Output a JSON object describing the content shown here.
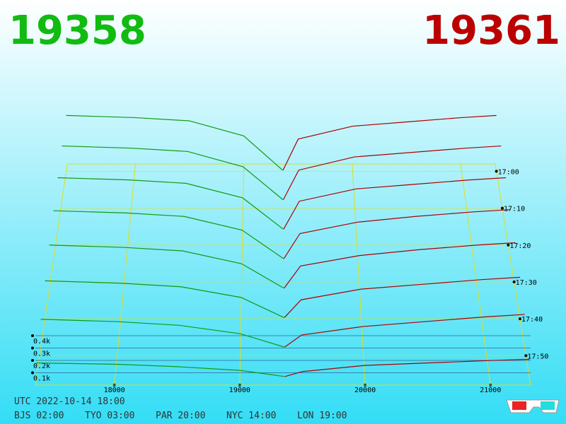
{
  "chart_data": {
    "type": "depth3d",
    "bid_price": 19358,
    "ask_price": 19361,
    "bid_color": "#119911",
    "ask_color": "#aa0000",
    "xlim": [
      17370,
      21320
    ],
    "xticks": [
      18000,
      19000,
      20000,
      21000
    ],
    "ylim": [
      0,
      400
    ],
    "yticks": [
      {
        "value": 100,
        "label": "0.1k"
      },
      {
        "value": 200,
        "label": "0.2k"
      },
      {
        "value": 300,
        "label": "0.3k"
      },
      {
        "value": 400,
        "label": "0.4k"
      }
    ],
    "zlim": [
      -2,
      58
    ],
    "zticks": [
      {
        "value": 0,
        "label": "17:00"
      },
      {
        "value": 10,
        "label": "17:10"
      },
      {
        "value": 20,
        "label": "17:20"
      },
      {
        "value": 30,
        "label": "17:30"
      },
      {
        "value": 40,
        "label": "17:40"
      },
      {
        "value": 50,
        "label": "17:50"
      }
    ],
    "layer_z": [
      0,
      8,
      16,
      24,
      32,
      40,
      48,
      56
    ],
    "bid_prices": [
      17370,
      18000,
      18500,
      19000,
      19358
    ],
    "ask_prices": [
      19361,
      19500,
      20000,
      20500,
      21000,
      21320
    ],
    "bids": [
      [
        520,
        500,
        470,
        330,
        10
      ],
      [
        500,
        480,
        450,
        310,
        10
      ],
      [
        470,
        450,
        420,
        290,
        10
      ],
      [
        430,
        410,
        380,
        260,
        10
      ],
      [
        380,
        360,
        330,
        220,
        10
      ],
      [
        320,
        300,
        270,
        180,
        10
      ],
      [
        240,
        220,
        190,
        120,
        10
      ],
      [
        120,
        110,
        90,
        60,
        10
      ]
    ],
    "asks": [
      [
        10,
        300,
        420,
        460,
        500,
        520
      ],
      [
        10,
        280,
        400,
        440,
        480,
        500
      ],
      [
        10,
        260,
        370,
        410,
        450,
        470
      ],
      [
        10,
        230,
        330,
        380,
        420,
        440
      ],
      [
        10,
        200,
        290,
        340,
        380,
        400
      ],
      [
        10,
        160,
        250,
        290,
        330,
        350
      ],
      [
        10,
        110,
        180,
        220,
        260,
        280
      ],
      [
        10,
        50,
        100,
        120,
        140,
        150
      ]
    ],
    "footer_utc": "UTC 2022-10-14 18:00",
    "footer_zones": [
      "BJS 02:00",
      "TYO 03:00",
      "PAR 20:00",
      "NYC 14:00",
      "LON 19:00"
    ]
  }
}
